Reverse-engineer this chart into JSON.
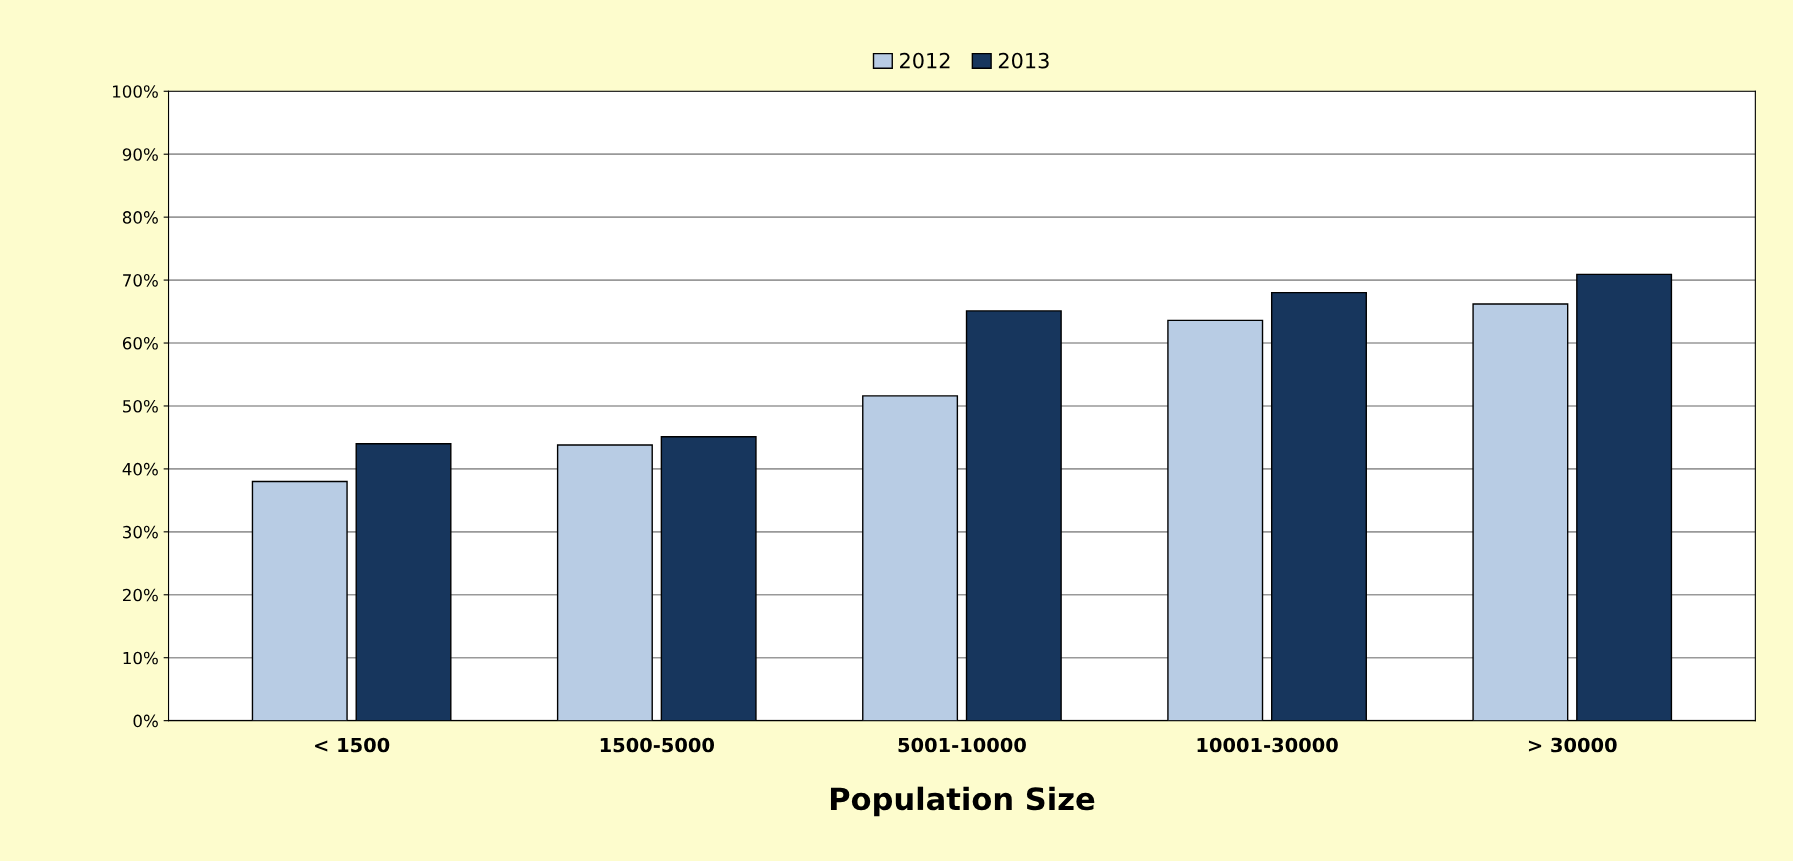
{
  "chart_data": {
    "type": "bar",
    "xlabel": "Population Size",
    "categories": [
      "< 1500",
      "1500-5000",
      "5001-10000",
      "10001-30000",
      "> 30000"
    ],
    "series": [
      {
        "name": "2012",
        "color": "#b8cce4",
        "values": [
          38,
          43.8,
          51.6,
          63.6,
          66.2
        ]
      },
      {
        "name": "2013",
        "color": "#17365d",
        "values": [
          44,
          45.1,
          65.1,
          68,
          70.9
        ]
      }
    ],
    "ylim": [
      0,
      100
    ],
    "yticks": [
      {
        "value": 0,
        "label": "0%"
      },
      {
        "value": 10,
        "label": "10%"
      },
      {
        "value": 20,
        "label": "20%"
      },
      {
        "value": 30,
        "label": "30%"
      },
      {
        "value": 40,
        "label": "40%"
      },
      {
        "value": 50,
        "label": "50%"
      },
      {
        "value": 60,
        "label": "60%"
      },
      {
        "value": 70,
        "label": "70%"
      },
      {
        "value": 80,
        "label": "80%"
      },
      {
        "value": 90,
        "label": "90%"
      },
      {
        "value": 100,
        "label": "100%"
      }
    ],
    "grid": "y",
    "legend": "top"
  }
}
